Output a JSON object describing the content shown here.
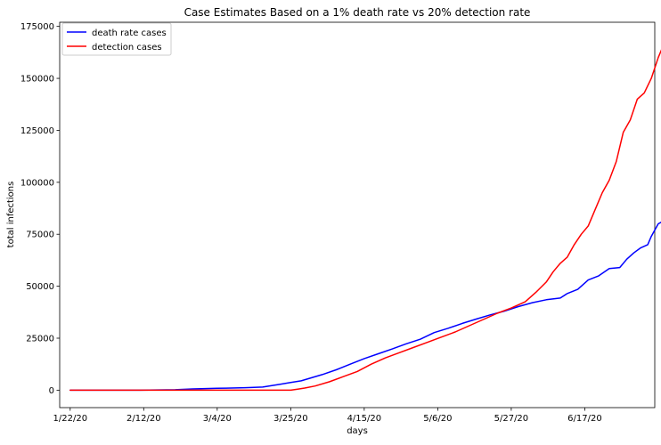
{
  "chart_data": {
    "type": "line",
    "title": "Case Estimates Based on a 1% death rate vs 20% detection rate",
    "xlabel": "days",
    "ylabel": "total infections",
    "x_tick_labels": [
      "1/22/20",
      "2/12/20",
      "3/4/20",
      "3/25/20",
      "4/15/20",
      "5/6/20",
      "5/27/20",
      "6/17/20"
    ],
    "x_tick_index": [
      0,
      21,
      42,
      63,
      84,
      105,
      126,
      147
    ],
    "y_ticks": [
      0,
      25000,
      50000,
      75000,
      100000,
      125000,
      150000,
      175000
    ],
    "y_tick_labels": [
      "0",
      "25000",
      "50000",
      "75000",
      "100000",
      "125000",
      "150000",
      "175000"
    ],
    "xlim": [
      -3,
      167
    ],
    "ylim": [
      -8400,
      177000
    ],
    "grid": false,
    "legend_position": "upper-left",
    "series": [
      {
        "name": "death rate cases",
        "color": "#0000ff",
        "points": [
          [
            0,
            0
          ],
          [
            20,
            0
          ],
          [
            30,
            200
          ],
          [
            35,
            600
          ],
          [
            42,
            900
          ],
          [
            46,
            1000
          ],
          [
            50,
            1200
          ],
          [
            55,
            1500
          ],
          [
            60,
            2800
          ],
          [
            63,
            3700
          ],
          [
            66,
            4500
          ],
          [
            69,
            6000
          ],
          [
            72,
            7500
          ],
          [
            76,
            9800
          ],
          [
            80,
            12500
          ],
          [
            84,
            15200
          ],
          [
            88,
            17500
          ],
          [
            92,
            19800
          ],
          [
            96,
            22300
          ],
          [
            100,
            24500
          ],
          [
            104,
            27700
          ],
          [
            108,
            29800
          ],
          [
            112,
            32100
          ],
          [
            116,
            34200
          ],
          [
            120,
            36200
          ],
          [
            124,
            38000
          ],
          [
            128,
            40200
          ],
          [
            132,
            42100
          ],
          [
            136,
            43500
          ],
          [
            140,
            44300
          ],
          [
            142,
            46500
          ],
          [
            145,
            48500
          ],
          [
            148,
            53000
          ],
          [
            151,
            55000
          ],
          [
            154,
            58500
          ],
          [
            157,
            59000
          ],
          [
            159,
            63000
          ],
          [
            161,
            66000
          ],
          [
            163,
            68500
          ],
          [
            165,
            70000
          ],
          [
            166,
            74000
          ],
          [
            168,
            80000
          ],
          [
            170,
            82000
          ]
        ]
      },
      {
        "name": "detection cases",
        "color": "#ff0000",
        "points": [
          [
            0,
            0
          ],
          [
            50,
            0
          ],
          [
            60,
            0
          ],
          [
            63,
            0
          ],
          [
            65,
            500
          ],
          [
            67,
            1000
          ],
          [
            70,
            2000
          ],
          [
            74,
            4000
          ],
          [
            78,
            6500
          ],
          [
            82,
            9000
          ],
          [
            86,
            12500
          ],
          [
            90,
            15500
          ],
          [
            94,
            18000
          ],
          [
            98,
            20500
          ],
          [
            102,
            23000
          ],
          [
            106,
            25500
          ],
          [
            110,
            28000
          ],
          [
            114,
            31000
          ],
          [
            118,
            34000
          ],
          [
            122,
            37000
          ],
          [
            126,
            39500
          ],
          [
            130,
            42500
          ],
          [
            133,
            47000
          ],
          [
            136,
            52000
          ],
          [
            138,
            57000
          ],
          [
            140,
            61000
          ],
          [
            142,
            64000
          ],
          [
            144,
            70000
          ],
          [
            146,
            75000
          ],
          [
            148,
            79000
          ],
          [
            150,
            87000
          ],
          [
            152,
            95000
          ],
          [
            154,
            101000
          ],
          [
            156,
            110000
          ],
          [
            158,
            124000
          ],
          [
            160,
            130000
          ],
          [
            162,
            140000
          ],
          [
            164,
            143000
          ],
          [
            166,
            150000
          ],
          [
            168,
            160000
          ],
          [
            170,
            168000
          ]
        ]
      }
    ]
  }
}
